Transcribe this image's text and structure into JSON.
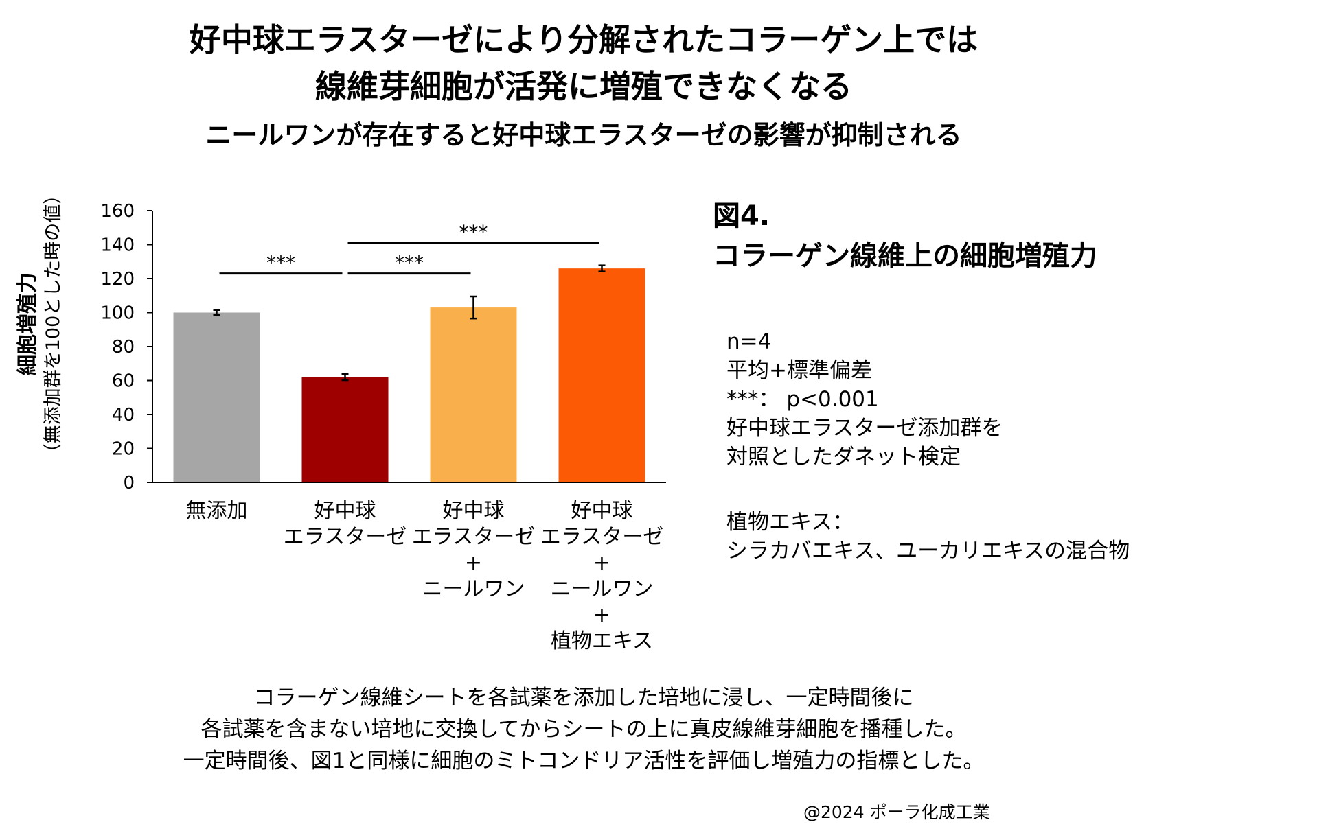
{
  "title": {
    "line1": "好中球エラスターゼにより分解されたコラーゲン上では",
    "line2": "線維芽細胞が活発に増殖できなくなる",
    "subtitle": "ニールワンが存在すると好中球エラスターゼの影響が抑制される"
  },
  "figure": {
    "number": "図4.",
    "caption": "コラーゲン線維上の細胞増殖力"
  },
  "notes": {
    "lines": [
      "n=4",
      "平均+標準偏差",
      "***： p<0.001",
      "好中球エラスターゼ添加群を",
      "対照としたダネット検定"
    ],
    "extract_lines": [
      "植物エキス：",
      "シラカバエキス、ユーカリエキスの混合物"
    ]
  },
  "description": [
    "コラーゲン線維シートを各試薬を添加した培地に浸し、一定時間後に",
    "各試薬を含まない培地に交換してからシートの上に真皮線維芽細胞を播種した。",
    "一定時間後、図1と同様に細胞のミトコンドリア活性を評価し増殖力の指標とした。"
  ],
  "copyright": "@2024 ポーラ化成工業",
  "chart_data": {
    "type": "bar",
    "ylabel": "細胞増殖力",
    "ylabel_sub": "（無添加群を100とした時の値）",
    "ylim": [
      0,
      160
    ],
    "yticks": [
      0,
      20,
      40,
      60,
      80,
      100,
      120,
      140,
      160
    ],
    "grid": false,
    "categories": [
      {
        "lines": [
          "無添加"
        ],
        "value": 100,
        "error": 1.5,
        "color": "#a6a6a6"
      },
      {
        "lines": [
          "好中球",
          "エラスターゼ"
        ],
        "value": 62,
        "error": 1.8,
        "color": "#9e0000"
      },
      {
        "lines": [
          "好中球",
          "エラスターゼ",
          "+",
          "ニールワン"
        ],
        "value": 103,
        "error": 6.5,
        "color": "#f9b04c"
      },
      {
        "lines": [
          "好中球",
          "エラスターゼ",
          "+",
          "ニールワン",
          "+",
          "植物エキス"
        ],
        "value": 126,
        "error": 1.8,
        "color": "#fd5a06"
      }
    ],
    "significance": [
      {
        "from": 0,
        "to": 1,
        "y": 123,
        "label": "***"
      },
      {
        "from": 1,
        "to": 2,
        "y": 123,
        "label": "***"
      },
      {
        "from": 1,
        "to": 3,
        "y": 141,
        "label": "***"
      }
    ]
  }
}
